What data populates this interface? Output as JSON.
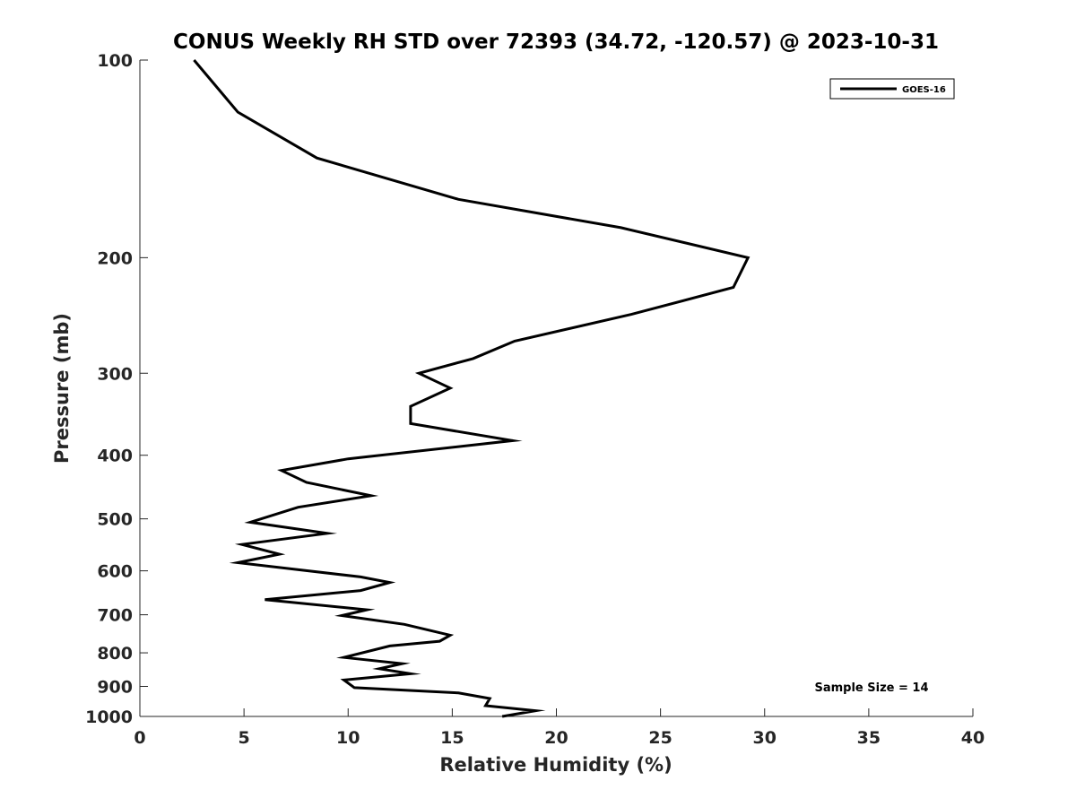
{
  "chart_data": {
    "type": "line",
    "title": "CONUS Weekly RH STD over 72393 (34.72, -120.57) @ 2023-10-31",
    "xlabel": "Relative Humidity (%)",
    "ylabel": "Pressure (mb)",
    "xlim": [
      0,
      40
    ],
    "ylim": [
      100,
      1000
    ],
    "yscale": "log",
    "yreversed": true,
    "xticks": [
      "0",
      "5",
      "10",
      "15",
      "20",
      "25",
      "30",
      "35",
      "40"
    ],
    "yticks": [
      "100",
      "200",
      "300",
      "400",
      "500",
      "600",
      "700",
      "800",
      "900",
      "1000"
    ],
    "grid": false,
    "legend_position": "top-right",
    "annotation": "Sample Size = 14",
    "series": [
      {
        "name": "GOES-16",
        "color": "#000000",
        "points": [
          [
            2.6,
            100
          ],
          [
            4.7,
            120
          ],
          [
            8.5,
            141
          ],
          [
            15.3,
            163
          ],
          [
            23.1,
            180
          ],
          [
            29.2,
            200
          ],
          [
            28.5,
            222
          ],
          [
            23.6,
            244
          ],
          [
            18.0,
            268
          ],
          [
            16.0,
            285
          ],
          [
            13.4,
            300
          ],
          [
            14.9,
            316
          ],
          [
            13.0,
            337
          ],
          [
            13.0,
            358
          ],
          [
            17.9,
            380
          ],
          [
            10.0,
            405
          ],
          [
            6.8,
            422
          ],
          [
            8.0,
            440
          ],
          [
            11.1,
            461
          ],
          [
            7.6,
            480
          ],
          [
            5.3,
            506
          ],
          [
            9.0,
            526
          ],
          [
            4.9,
            547
          ],
          [
            6.7,
            566
          ],
          [
            4.7,
            583
          ],
          [
            10.6,
            613
          ],
          [
            12.0,
            625
          ],
          [
            10.6,
            643
          ],
          [
            6.0,
            664
          ],
          [
            10.9,
            688
          ],
          [
            9.7,
            702
          ],
          [
            12.7,
            724
          ],
          [
            14.9,
            752
          ],
          [
            14.4,
            768
          ],
          [
            12.0,
            781
          ],
          [
            9.8,
            813
          ],
          [
            12.6,
            831
          ],
          [
            11.5,
            846
          ],
          [
            13.0,
            861
          ],
          [
            9.8,
            880
          ],
          [
            10.3,
            904
          ],
          [
            15.3,
            921
          ],
          [
            16.8,
            939
          ],
          [
            16.6,
            963
          ],
          [
            19.0,
            980
          ],
          [
            17.4,
            1000
          ]
        ]
      }
    ]
  }
}
